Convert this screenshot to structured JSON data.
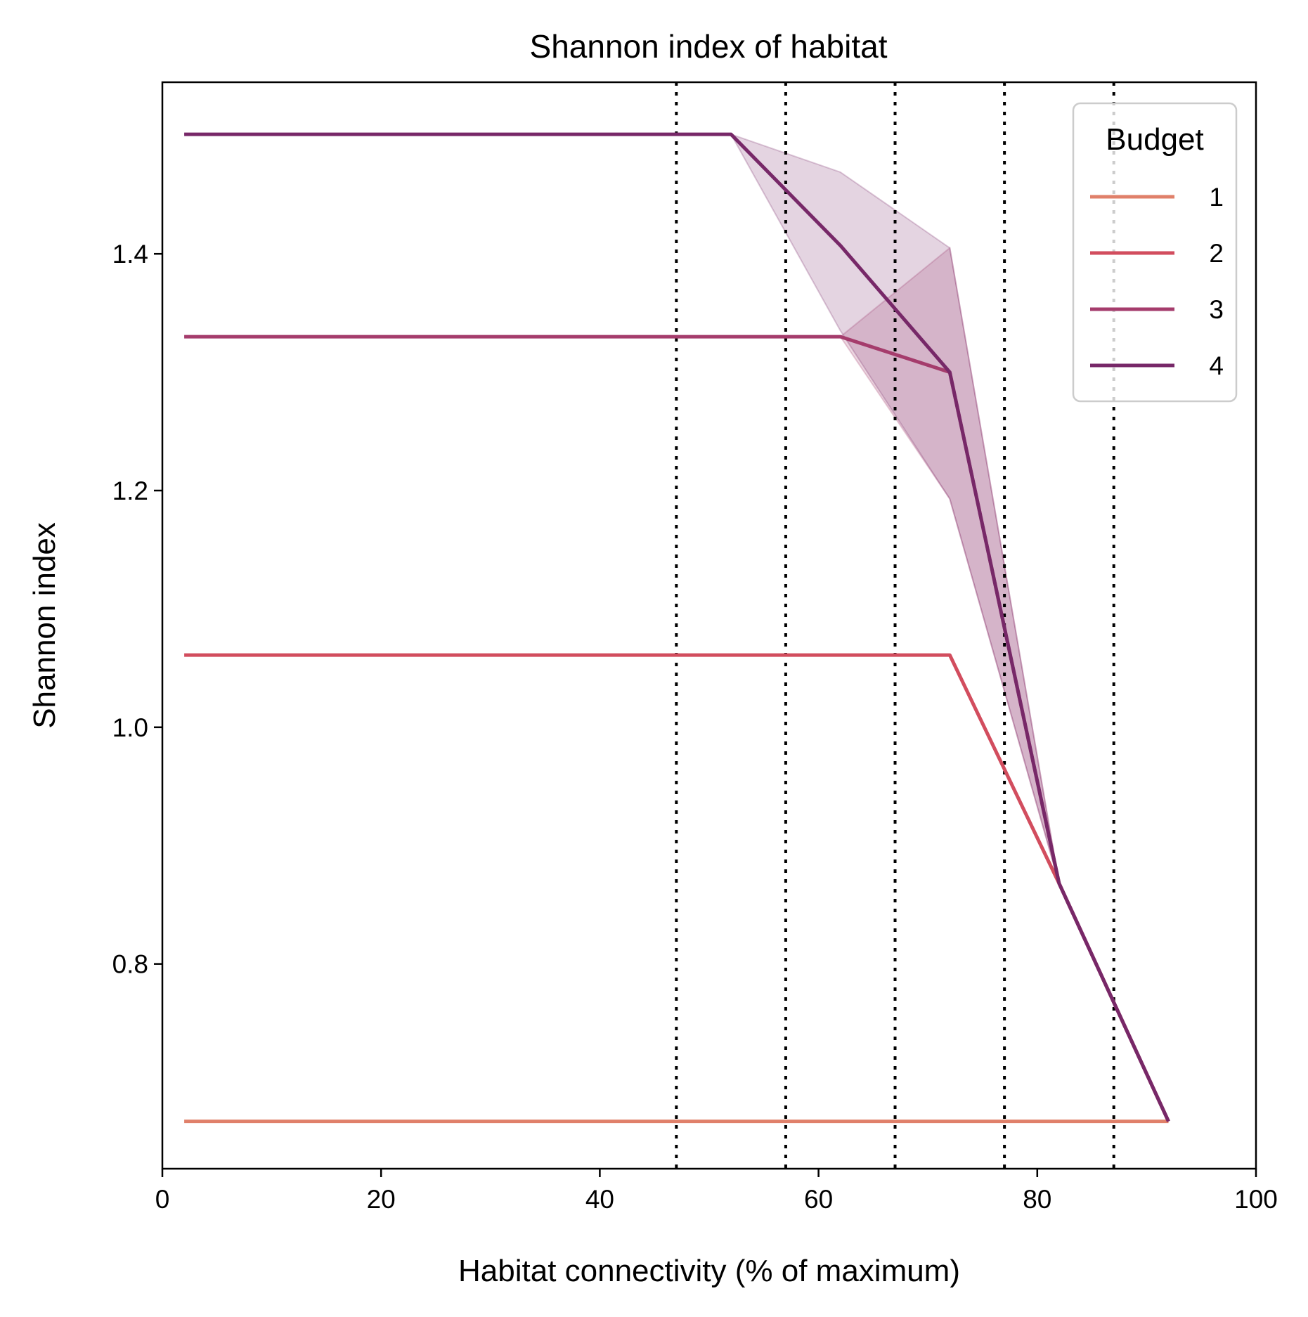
{
  "chart_data": {
    "type": "line",
    "title": "Shannon index of habitat",
    "xlabel": "Habitat connectivity (% of maximum)",
    "ylabel": "Shannon index",
    "xlim": [
      0,
      100
    ],
    "ylim": [
      0.627,
      1.545
    ],
    "xticks": [
      0,
      20,
      40,
      60,
      80,
      100
    ],
    "xtick_labels": [
      "0",
      "20",
      "40",
      "60",
      "80",
      "100"
    ],
    "yticks": [
      0.8,
      1.0,
      1.2,
      1.4
    ],
    "ytick_labels": [
      "0.8",
      "1.0",
      "1.2",
      "1.4"
    ],
    "grid": false,
    "legend": {
      "title": "Budget",
      "placement": "top-right"
    },
    "vertical_lines": {
      "style": "dotted",
      "color": "#000000",
      "x": [
        47,
        57,
        67,
        77,
        87
      ]
    },
    "series": [
      {
        "name": "1",
        "color": "#e0806a",
        "x": [
          2,
          92
        ],
        "y": [
          0.667,
          0.667
        ]
      },
      {
        "name": "2",
        "color": "#d24d5e",
        "x": [
          2,
          72,
          82,
          92
        ],
        "y": [
          1.061,
          1.061,
          0.868,
          0.667
        ]
      },
      {
        "name": "3",
        "color": "#a53c6c",
        "x": [
          2,
          62,
          72,
          82,
          92
        ],
        "y": [
          1.33,
          1.33,
          1.3,
          0.868,
          0.667
        ],
        "band_upper": [
          1.33,
          1.33,
          1.405,
          0.868,
          0.667
        ],
        "band_lower": [
          1.33,
          1.33,
          1.193,
          0.868,
          0.667
        ]
      },
      {
        "name": "4",
        "color": "#772868",
        "x": [
          2,
          52,
          62,
          72,
          82,
          92
        ],
        "y": [
          1.501,
          1.501,
          1.407,
          1.3,
          0.868,
          0.667
        ],
        "band_upper": [
          1.501,
          1.501,
          1.469,
          1.405,
          0.868,
          0.667
        ],
        "band_lower": [
          1.501,
          1.501,
          1.335,
          1.193,
          0.868,
          0.667
        ]
      }
    ]
  }
}
